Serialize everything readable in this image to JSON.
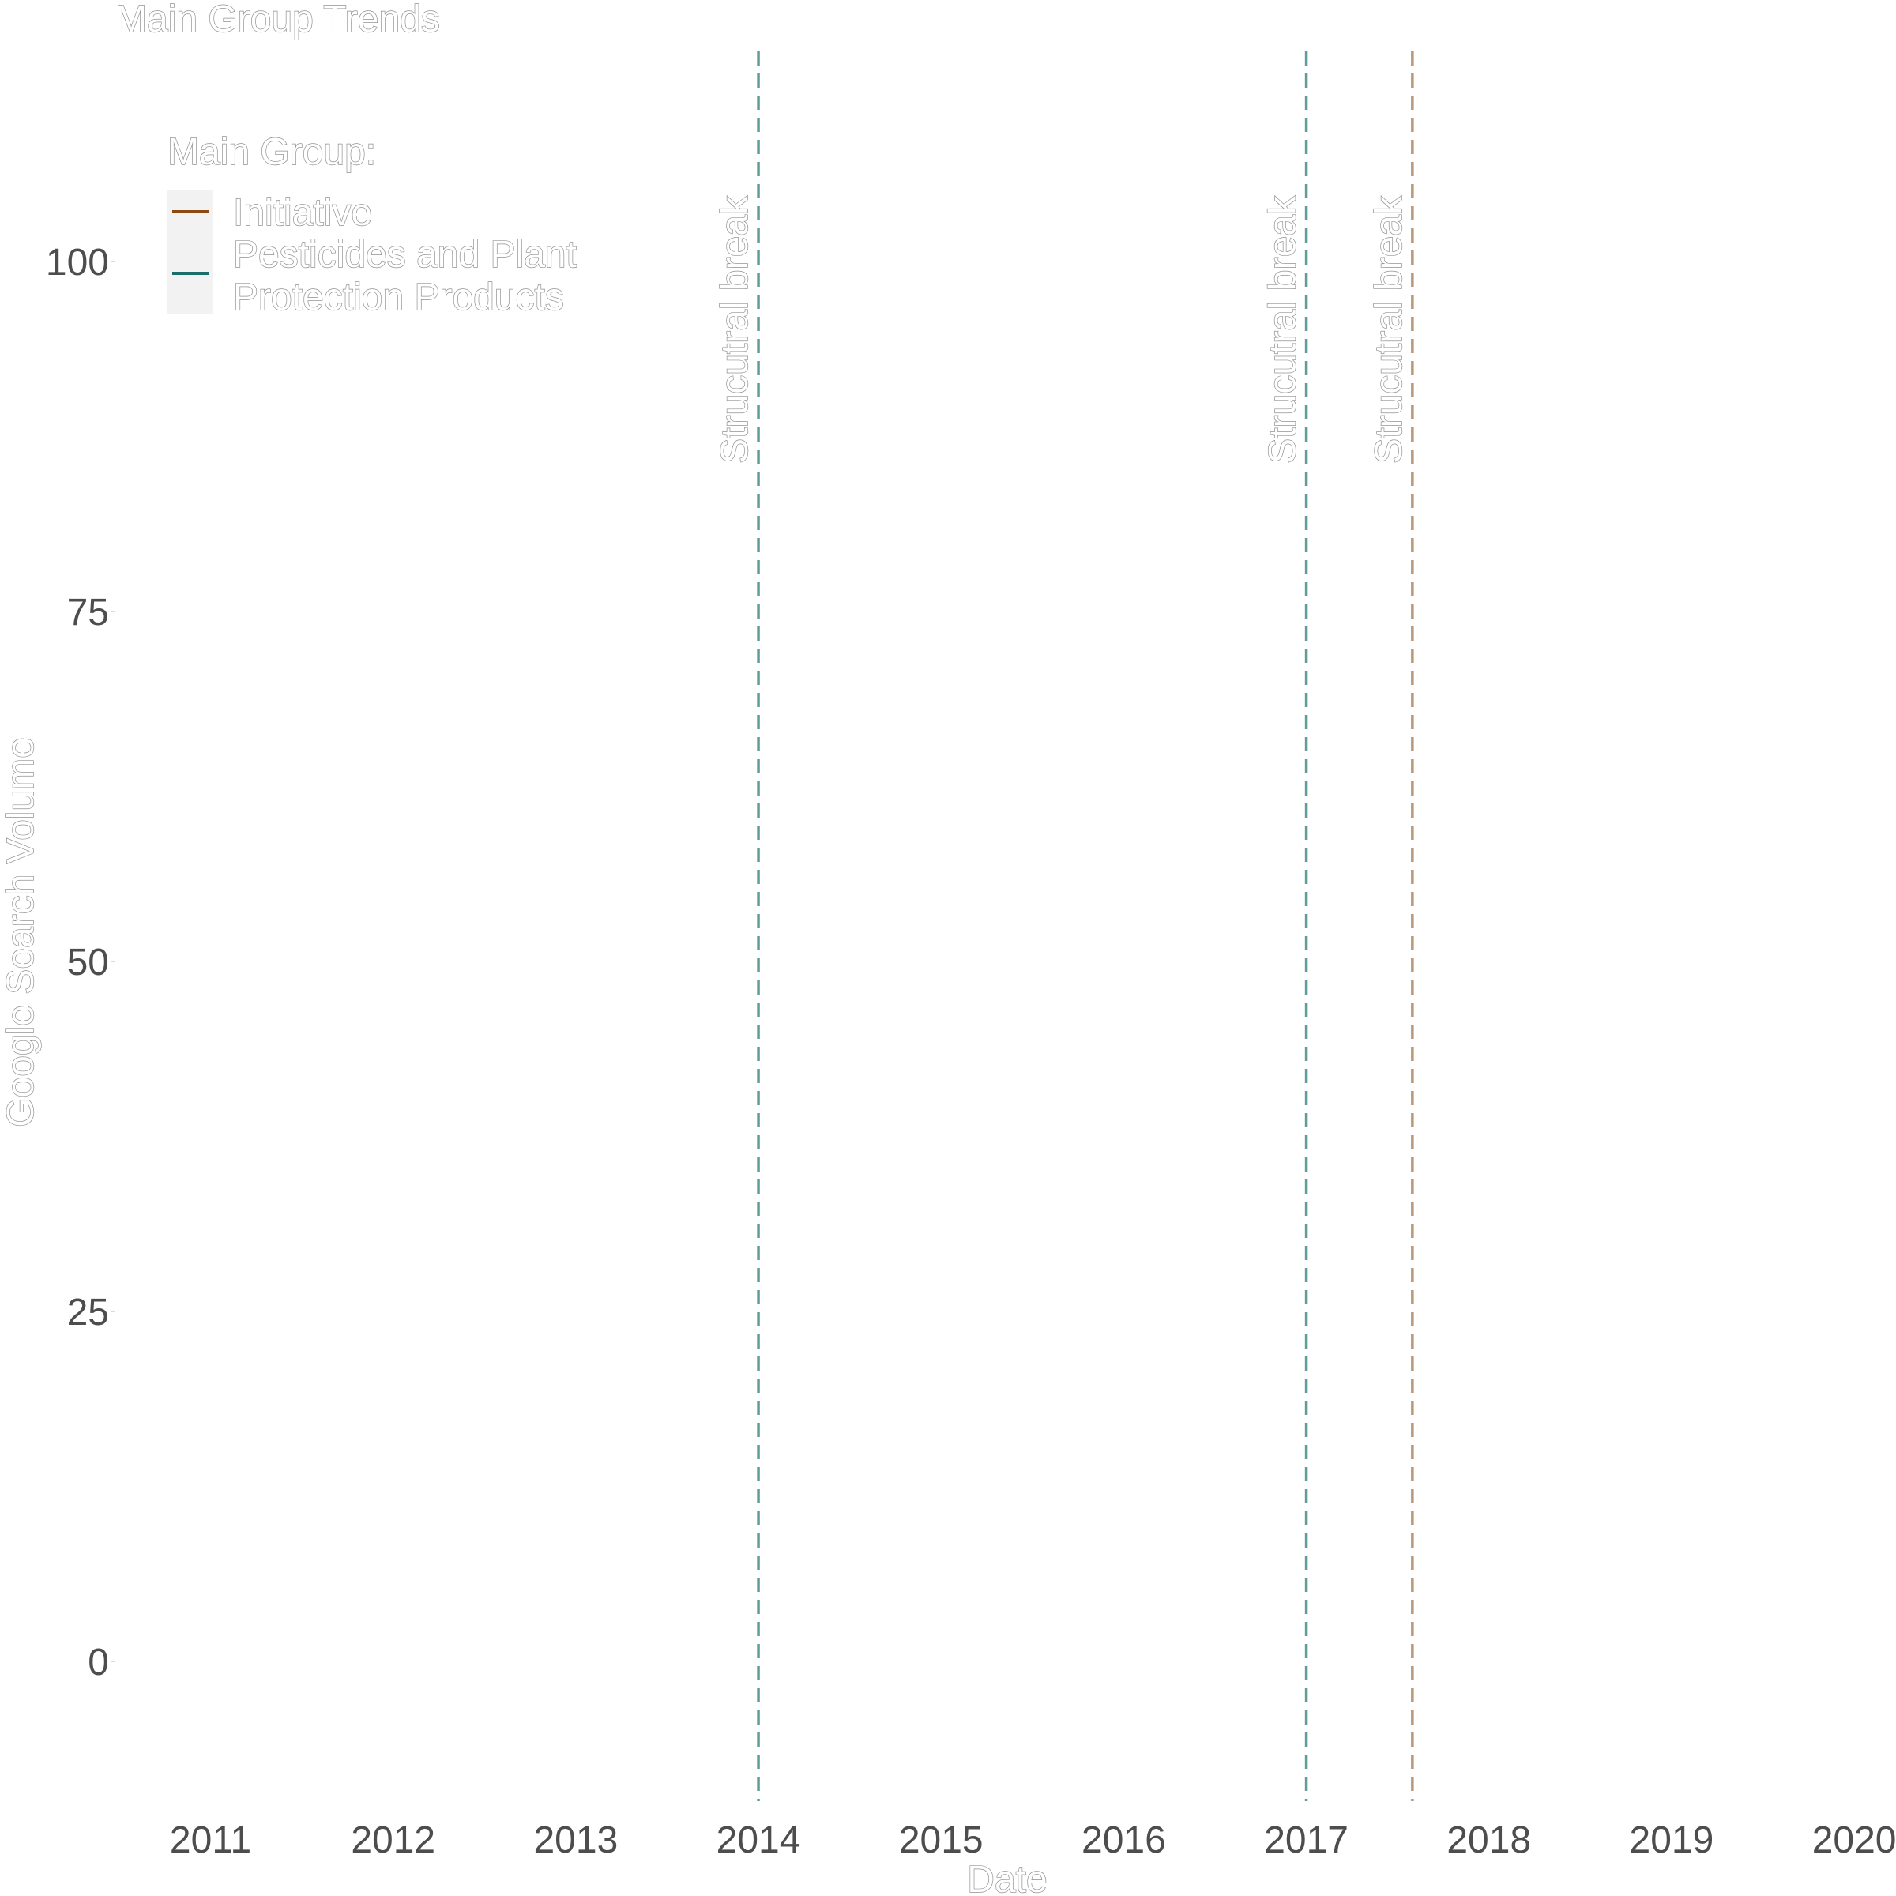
{
  "chart_data": {
    "type": "line",
    "title": "Main Group Trends",
    "xlabel": "Date",
    "ylabel": "Google Search Volume",
    "x_ticks": [
      "2011",
      "2012",
      "2013",
      "2014",
      "2015",
      "2016",
      "2017",
      "2018",
      "2019",
      "2020"
    ],
    "y_ticks": [
      0,
      25,
      50,
      75,
      100
    ],
    "xlim": [
      "2010-07-01",
      "2020-03-01"
    ],
    "ylim": [
      -10,
      115
    ],
    "grid": false,
    "legend": {
      "title": "Main Group:",
      "placement": "top-left",
      "entries": [
        {
          "label": "Initiative",
          "color": "#8c4a10"
        },
        {
          "label": "Pesticides and Plant\n Protection Products",
          "label_lines": [
            "Pesticides and Plant",
            " Protection Products"
          ],
          "color": "#1b6e68"
        }
      ]
    },
    "series": [
      {
        "name": "Initiative",
        "color": "#8c4a10",
        "points": []
      },
      {
        "name": "Pesticides and Plant\n Protection Products",
        "color": "#1b6e68",
        "points": []
      }
    ],
    "structural_breaks": [
      {
        "date": "2014-01-01",
        "series": "Pesticides and Plant\n Protection Products",
        "color": "#5f9e98",
        "label": "Strucutral break"
      },
      {
        "date": "2017-01-01",
        "series": "Pesticides and Plant\n Protection Products",
        "color": "#5f9e98",
        "label": "Strucutral break"
      },
      {
        "date": "2017-08-01",
        "series": "Initiative",
        "color": "#b8977a",
        "label": "Strucutral break"
      }
    ]
  }
}
